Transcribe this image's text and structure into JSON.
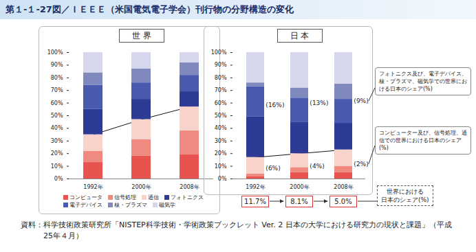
{
  "title": "第１-１-27図／ＩＥＥＥ（米国電気電子学会）刊行物の分野構造の変化",
  "source": "資料：科学技術政策研究所「NISTEP科学技術・学術政策ブックレット Ver. 2 日本の大学における研究力の現状と課題」（平成25年４月）",
  "chart_data": [
    {
      "type": "bar",
      "title": "世 界",
      "stacked": true,
      "legend": "bottom",
      "categories": [
        "1992年",
        "2000年",
        "2008年"
      ],
      "series": [
        {
          "name": "コンピュータ",
          "color": "#e8534f",
          "values": [
            13,
            18,
            19
          ]
        },
        {
          "name": "信号処理",
          "color": "#f08a80",
          "values": [
            9,
            13,
            19
          ]
        },
        {
          "name": "通信",
          "color": "#f8d3cc",
          "values": [
            13,
            16,
            19
          ]
        },
        {
          "name": "フォトニクス",
          "color": "#2e3b94",
          "values": [
            20,
            16,
            12
          ]
        },
        {
          "name": "電子デバイス",
          "color": "#4a5aae",
          "values": [
            19,
            13,
            13
          ]
        },
        {
          "name": "核・プラズマ",
          "color": "#8089bd",
          "values": [
            10,
            11,
            10
          ]
        },
        {
          "name": "磁気学",
          "color": "#d6d7ec",
          "values": [
            16,
            13,
            8
          ]
        }
      ],
      "ylim": [
        0,
        100
      ],
      "yticks": [
        {
          "value": 0,
          "label": "0%"
        },
        {
          "value": 10,
          "label": "10%"
        },
        {
          "value": 20,
          "label": "20%"
        },
        {
          "value": 30,
          "label": "30%"
        },
        {
          "value": 40,
          "label": "40%"
        },
        {
          "value": 50,
          "label": "50%"
        },
        {
          "value": 60,
          "label": "60%"
        },
        {
          "value": 70,
          "label": "70%"
        },
        {
          "value": 80,
          "label": "80%"
        },
        {
          "value": 90,
          "label": "90%"
        },
        {
          "value": 100,
          "label": "100%"
        }
      ]
    },
    {
      "type": "bar",
      "title": "日 本",
      "stacked": true,
      "categories": [
        "1992年",
        "2000年",
        "2008年"
      ],
      "series": [
        {
          "name": "コンピュータ",
          "color": "#e8534f",
          "values": [
            2,
            5,
            5
          ]
        },
        {
          "name": "信号処理",
          "color": "#f08a80",
          "values": [
            2,
            4,
            5
          ]
        },
        {
          "name": "通信",
          "color": "#f8d3cc",
          "values": [
            13,
            11,
            13
          ]
        },
        {
          "name": "フォトニクス",
          "color": "#2e3b94",
          "values": [
            32,
            25,
            21
          ]
        },
        {
          "name": "電子デバイス",
          "color": "#4a5aae",
          "values": [
            24,
            19,
            19
          ]
        },
        {
          "name": "核・プラズマ",
          "color": "#8089bd",
          "values": [
            3,
            8,
            12
          ]
        },
        {
          "name": "磁気学",
          "color": "#d6d7ec",
          "values": [
            24,
            28,
            25
          ]
        }
      ],
      "ylim": [
        0,
        100
      ],
      "yticks": [
        {
          "value": 0,
          "label": "0%"
        },
        {
          "value": 10,
          "label": "10%"
        },
        {
          "value": 20,
          "label": "20%"
        },
        {
          "value": 30,
          "label": "30%"
        },
        {
          "value": 40,
          "label": "40%"
        },
        {
          "value": 50,
          "label": "50%"
        },
        {
          "value": 60,
          "label": "60%"
        },
        {
          "value": 70,
          "label": "70%"
        },
        {
          "value": 80,
          "label": "80%"
        },
        {
          "value": 90,
          "label": "90%"
        },
        {
          "value": 100,
          "label": "100%"
        }
      ],
      "share_upper": {
        "label": "フォトニクス及び、電子デバイス、核・プラズマ、磁気学での世界における日本のシェア(%)",
        "values": [
          16,
          13,
          9
        ],
        "value_labels": [
          "(16%)",
          "(13%)",
          "(9%)"
        ]
      },
      "share_lower": {
        "label": "コンピューター及び、信号処理、通信での世界における日本のシェア(%)",
        "values": [
          6,
          4,
          2
        ],
        "value_labels": [
          "(6%)",
          "(4%)",
          "(2%)"
        ]
      },
      "share_total": {
        "label": "世界における\n日本のシェア(%)",
        "values": [
          11.7,
          8.1,
          5.0
        ],
        "value_labels": [
          "11.7%",
          "8.1%",
          "5.0%"
        ]
      }
    }
  ]
}
